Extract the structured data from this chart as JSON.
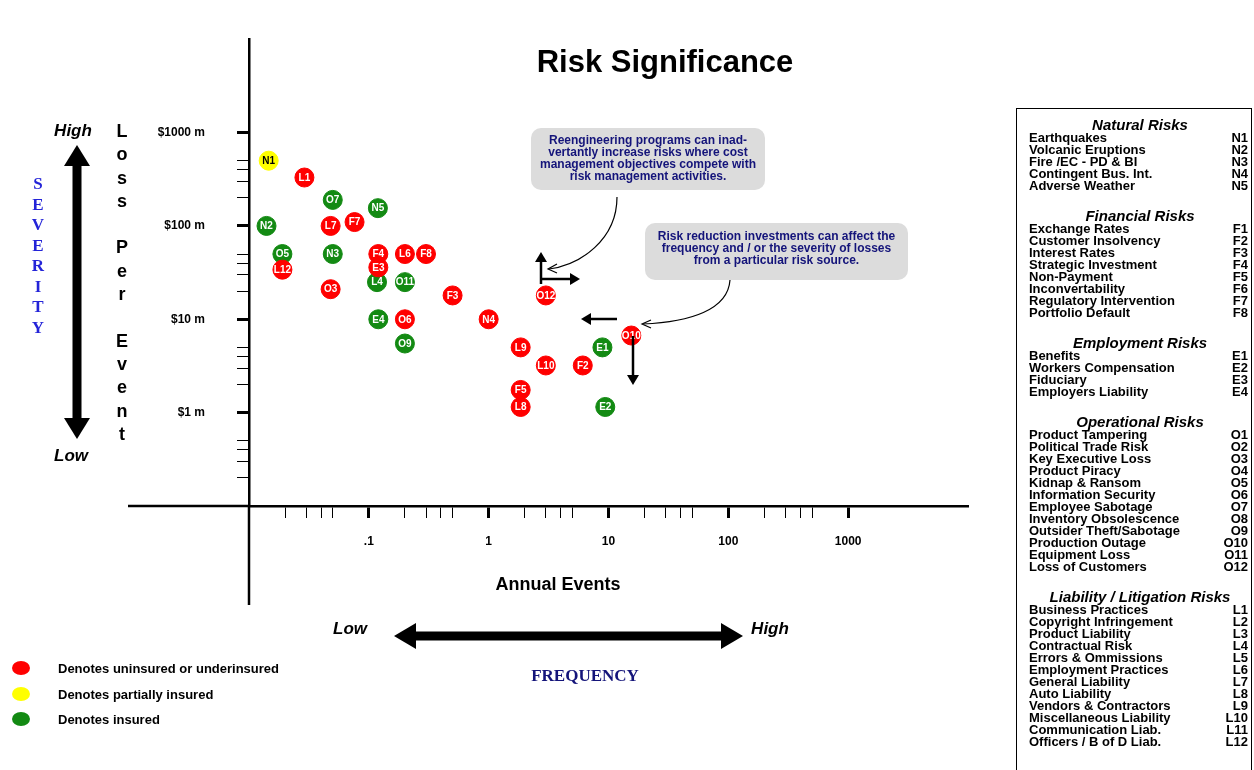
{
  "chart_data": {
    "type": "scatter",
    "title": "Risk Significance",
    "xlabel": "Annual Events",
    "ylabel": "Loss Per Event",
    "log": "xy",
    "grid": false,
    "marker": "circle",
    "legend": "bottom left",
    "xlim": [
      0.01,
      10000
    ],
    "ylim": [
      0.1,
      10000
    ],
    "xticks": [
      {
        "value": 0.02,
        "label": null
      },
      {
        "value": 0.03,
        "label": null
      },
      {
        "value": 0.04,
        "label": null
      },
      {
        "value": 0.05,
        "label": null
      },
      {
        "value": 0.1,
        "label": ".1"
      },
      {
        "value": 0.2,
        "label": null
      },
      {
        "value": 0.3,
        "label": null
      },
      {
        "value": 0.4,
        "label": null
      },
      {
        "value": 0.5,
        "label": null
      },
      1,
      {
        "value": 2,
        "label": null
      },
      {
        "value": 3,
        "label": null
      },
      {
        "value": 4,
        "label": null
      },
      {
        "value": 5,
        "label": null
      },
      10,
      {
        "value": 20,
        "label": null
      },
      {
        "value": 30,
        "label": null
      },
      {
        "value": 40,
        "label": null
      },
      {
        "value": 50,
        "label": null
      },
      100,
      {
        "value": 200,
        "label": null
      },
      {
        "value": 300,
        "label": null
      },
      {
        "value": 400,
        "label": null
      },
      {
        "value": 500,
        "label": null
      },
      1000
    ],
    "yticks": [
      {
        "value": 0.2,
        "label": null
      },
      {
        "value": 0.3,
        "label": null
      },
      {
        "value": 0.4,
        "label": null
      },
      {
        "value": 0.5,
        "label": null
      },
      {
        "value": 1,
        "label": "$1 m"
      },
      {
        "value": 2,
        "label": null
      },
      {
        "value": 3,
        "label": null
      },
      {
        "value": 4,
        "label": null
      },
      {
        "value": 5,
        "label": null
      },
      {
        "value": 10,
        "label": "$10 m"
      },
      {
        "value": 20,
        "label": null
      },
      {
        "value": 30,
        "label": null
      },
      {
        "value": 40,
        "label": null
      },
      {
        "value": 50,
        "label": null
      },
      {
        "value": 100,
        "label": "$100 m"
      },
      {
        "value": 200,
        "label": null
      },
      {
        "value": 300,
        "label": null
      },
      {
        "value": 400,
        "label": null
      },
      {
        "value": 500,
        "label": null
      },
      {
        "value": 1000,
        "label": "$1000 m"
      }
    ],
    "series": [
      {
        "name": "Denotes uninsured or underinsured",
        "color": "#ff0000",
        "x": [
          0.029,
          0.048,
          0.076,
          0.12,
          0.2,
          0.3,
          0.12,
          0.019,
          0.048,
          0.5,
          3.0,
          0.2,
          1.0,
          15.5,
          1.85,
          3.0,
          6.1,
          1.85,
          1.85
        ],
        "values": [
          330,
          100,
          110,
          50,
          50,
          50,
          36,
          34,
          21,
          18,
          18,
          10,
          10,
          6.7,
          5.0,
          3.2,
          3.2,
          1.75,
          1.15
        ],
        "value_labels": [
          "L1",
          "L7",
          "F7",
          "F4",
          "L6",
          "F8",
          "E3",
          "L12",
          "O3",
          "F3",
          "O12",
          "O6",
          "N4",
          "O10",
          "L9",
          "L10",
          "F2",
          "F5",
          "L8"
        ]
      },
      {
        "name": "Denotes partially insured",
        "color": "#ffff00",
        "x": [
          0.0146
        ],
        "values": [
          500
        ],
        "value_labels": [
          "N1"
        ]
      },
      {
        "name": "Denotes insured",
        "color": "#138a13",
        "x": [
          0.05,
          0.119,
          0.014,
          0.019,
          0.05,
          0.117,
          0.2,
          0.12,
          0.2,
          8.9,
          9.4
        ],
        "values": [
          190,
          155,
          100,
          50,
          50,
          25,
          25,
          10,
          5.5,
          5.0,
          1.15
        ],
        "value_labels": [
          "O7",
          "N5",
          "N2",
          "O5",
          "N3",
          "L4",
          "O11",
          "E4",
          "O9",
          "E1",
          "E2"
        ]
      }
    ],
    "annotations": [
      "Reengineering programs can inad-vertantly increase risks where cost management objectives compete with risk management activities.",
      "Risk reduction investments can affect the frequency and / or the severity of losses from a particular risk source.",
      "High",
      "Low",
      "SEVERITY",
      "Low",
      "High",
      "FREQUENCY",
      "Natural Risks",
      "Earthquakes N1",
      "Volcanic Eruptions N2",
      "Fire /EC - PD & BI N3",
      "Contingent Bus. Int. N4",
      "Adverse Weather N5",
      "Financial Risks",
      "Exchange Rates F1",
      "Customer Insolvency F2",
      "Interest Rates F3",
      "Strategic Investment F4",
      "Non-Payment F5",
      "Inconvertability F6",
      "Regulatory Intervention F7",
      "Portfolio Default F8",
      "Employment Risks",
      "Benefits E1",
      "Workers Compensation E2",
      "Fiduciary E3",
      "Employers Liability E4",
      "Operational Risks",
      "Product Tampering O1",
      "Political Trade Risk O2",
      "Key Executive Loss O3",
      "Product Piracy O4",
      "Kidnap & Ransom O5",
      "Information Security O6",
      "Employee Sabotage O7",
      "Inventory Obsolescence O8",
      "Outsider Theft/Sabotage O9",
      "Production Outage O10",
      "Equipment Loss O11",
      "Loss of Customers O12",
      "Liability / Litigation Risks",
      "Business Practices L1",
      "Copyright Infringement L2",
      "Product Liability L3",
      "Contractual Risk L4",
      "Errors & Ommissions L5",
      "Employment Practices L6",
      "General Liability L7",
      "Auto Liability L8",
      "Vendors & Contractors L9",
      "Miscellaneous Liability L10",
      "Communication Liab. L11",
      "Officers / B of D Liab. L12"
    ]
  }
}
